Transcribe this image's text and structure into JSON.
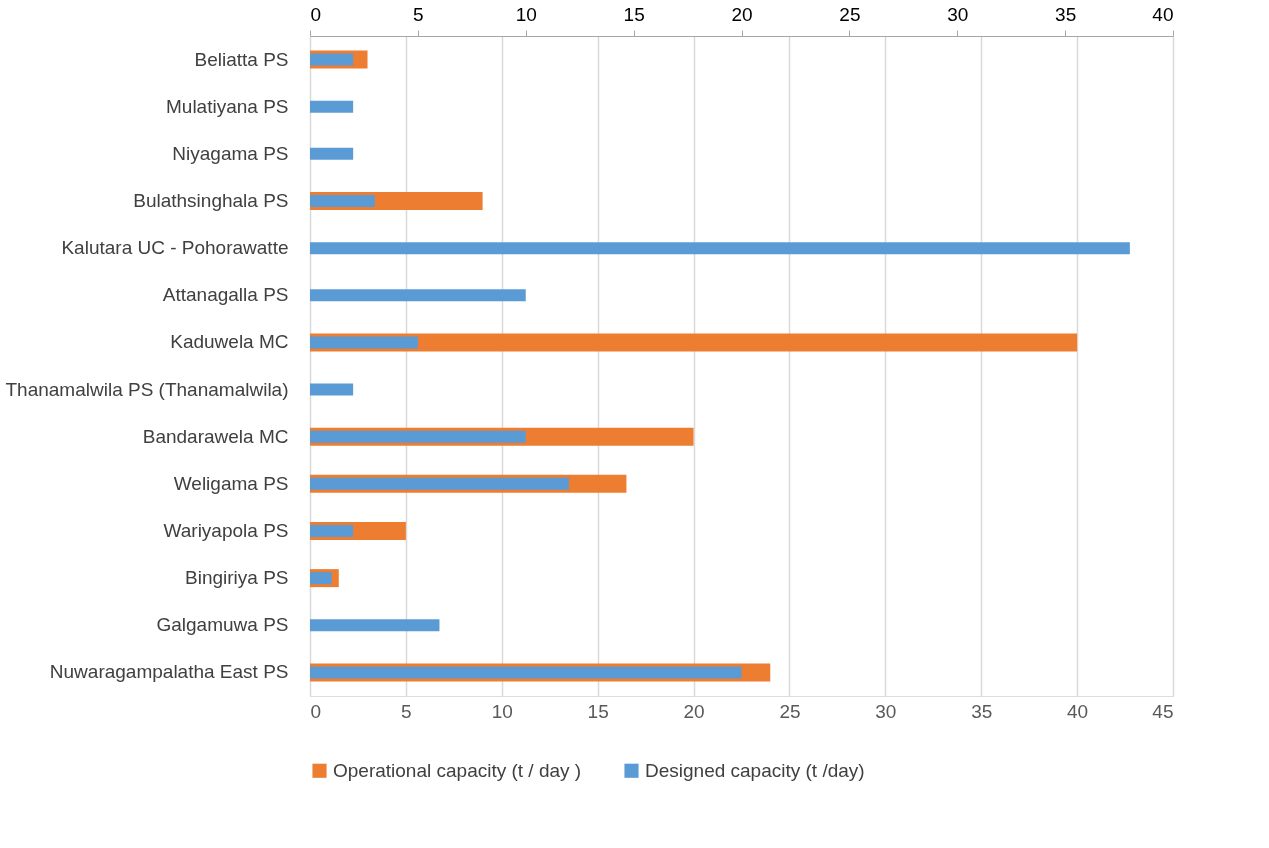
{
  "chart_data": {
    "type": "bar",
    "orientation": "horizontal",
    "categories": [
      "Beliatta PS",
      "Mulatiyana PS",
      "Niyagama PS",
      "Bulathsinghala PS",
      "Kalutara UC - Pohorawatte",
      "Attanagalla PS",
      "Kaduwela MC",
      "Thanamalwila PS (Thanamalwila)",
      "Bandarawela MC",
      "Weligama PS",
      "Wariyapola PS",
      "Bingiriya PS",
      "Galgamuwa PS",
      "Nuwaragampalatha East PS"
    ],
    "series": [
      {
        "name": "Operational capacity (t / day )",
        "color": "#ed7d31",
        "values": [
          3,
          null,
          null,
          9,
          null,
          null,
          40,
          null,
          20,
          16.5,
          5,
          1.5,
          null,
          24
        ]
      },
      {
        "name": "Designed capacity (t /day)",
        "color": "#5b9bd5",
        "axis": "x2",
        "values": [
          2,
          2,
          2,
          3,
          38,
          10,
          5,
          2,
          10,
          12,
          2,
          1,
          6,
          20
        ]
      }
    ],
    "xlim": [
      0,
      45
    ],
    "xticks": [
      0,
      5,
      10,
      15,
      20,
      25,
      30,
      35,
      40,
      45
    ],
    "x2lim": [
      0,
      40
    ],
    "x2ticks": [
      0,
      5,
      10,
      15,
      20,
      25,
      30,
      35,
      40
    ],
    "grid": "x",
    "legend": "bottom"
  }
}
